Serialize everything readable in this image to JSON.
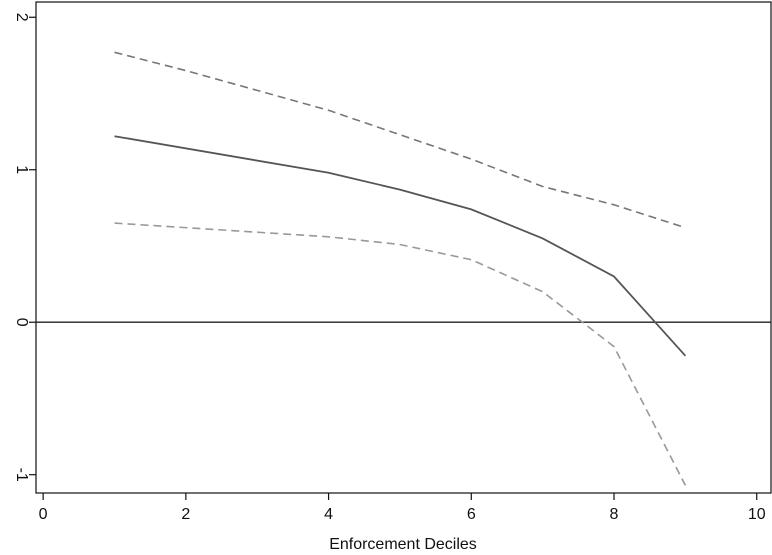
{
  "chart_data": {
    "type": "line",
    "title": "",
    "xlabel": "Enforcement Deciles",
    "ylabel": "",
    "xlim": [
      -0.1,
      10.2
    ],
    "ylim": [
      -1.12,
      2.1
    ],
    "xticks": [
      0,
      2,
      4,
      6,
      8,
      10
    ],
    "yticks": [
      -1,
      0,
      1,
      2
    ],
    "grid": false,
    "reference_line": {
      "y": 0,
      "color": "#222222"
    },
    "series": [
      {
        "style": "solid",
        "color": "#555555",
        "x": [
          1,
          4,
          5,
          6,
          7,
          8,
          9
        ],
        "y": [
          1.22,
          0.98,
          0.87,
          0.74,
          0.55,
          0.3,
          -0.22
        ]
      },
      {
        "style": "dashed",
        "color": "#777777",
        "x": [
          1,
          2,
          3,
          4,
          5,
          6,
          7,
          8,
          9
        ],
        "y": [
          1.77,
          1.65,
          1.52,
          1.39,
          1.23,
          1.07,
          0.89,
          0.77,
          0.62
        ]
      },
      {
        "style": "dashed",
        "color": "#999999",
        "x": [
          1,
          4,
          5,
          6,
          7,
          8,
          9
        ],
        "y": [
          0.65,
          0.56,
          0.51,
          0.41,
          0.2,
          -0.16,
          -1.07
        ]
      }
    ]
  }
}
